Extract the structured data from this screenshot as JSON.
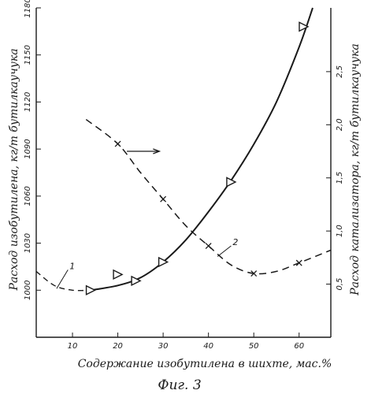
{
  "figure": {
    "caption": "Фиг. 3"
  },
  "chart_data": {
    "type": "line",
    "xlabel": "Содержание изобутилена в шихте, мас.%",
    "ylabel_left": "Расход изобутилена, кг/т бутилкаучука",
    "ylabel_right": "Расход катализатора, кг/т бутилкаучука",
    "x_ticks": [
      "10",
      "20",
      "30",
      "40",
      "50",
      "60"
    ],
    "y_left_ticks": [
      "1000",
      "1030",
      "1060",
      "1090",
      "1120",
      "1150",
      "1180"
    ],
    "y_right_ticks": [
      "0,5",
      "1,0",
      "1,5",
      "2,0",
      "2,5"
    ],
    "xlim": [
      2,
      67
    ],
    "ylim_left": [
      970,
      1180
    ],
    "ylim_right": [
      0,
      3.1
    ],
    "grid": false,
    "series": [
      {
        "name": "1",
        "axis": "left",
        "marker": "triangle",
        "points_x": [
          14,
          20,
          24,
          30,
          45,
          61
        ],
        "points_y": [
          1000,
          1010,
          1006,
          1018,
          1069,
          1168
        ],
        "curve_x": [
          2,
          6,
          10,
          14,
          20,
          25,
          30,
          35,
          40,
          45,
          50,
          55,
          60,
          63
        ],
        "curve_y": [
          1012,
          1003,
          1000,
          1000,
          1003,
          1008,
          1018,
          1032,
          1050,
          1070,
          1093,
          1120,
          1155,
          1180
        ]
      },
      {
        "name": "2",
        "axis": "right",
        "marker": "x",
        "points_x": [
          20,
          30,
          40,
          50,
          60
        ],
        "points_y": [
          1.82,
          1.3,
          0.86,
          0.6,
          0.7
        ],
        "curve_x": [
          13,
          20,
          25,
          30,
          35,
          40,
          45,
          50,
          55,
          60,
          67
        ],
        "curve_y": [
          2.05,
          1.82,
          1.55,
          1.3,
          1.05,
          0.86,
          0.68,
          0.6,
          0.62,
          0.7,
          0.82
        ]
      }
    ]
  }
}
